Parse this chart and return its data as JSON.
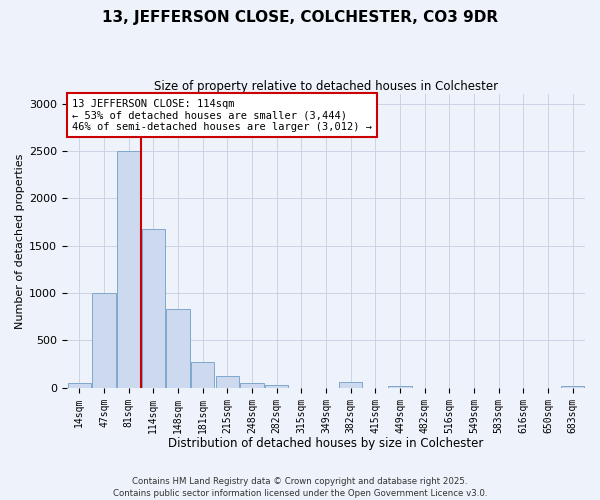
{
  "title": "13, JEFFERSON CLOSE, COLCHESTER, CO3 9DR",
  "subtitle": "Size of property relative to detached houses in Colchester",
  "xlabel": "Distribution of detached houses by size in Colchester",
  "ylabel": "Number of detached properties",
  "bar_labels": [
    "14sqm",
    "47sqm",
    "81sqm",
    "114sqm",
    "148sqm",
    "181sqm",
    "215sqm",
    "248sqm",
    "282sqm",
    "315sqm",
    "349sqm",
    "382sqm",
    "415sqm",
    "449sqm",
    "482sqm",
    "516sqm",
    "549sqm",
    "583sqm",
    "616sqm",
    "650sqm",
    "683sqm"
  ],
  "bar_values": [
    50,
    1000,
    2500,
    1680,
    830,
    270,
    120,
    50,
    30,
    0,
    0,
    60,
    0,
    20,
    0,
    0,
    0,
    0,
    0,
    0,
    20
  ],
  "bar_color": "#ccd9ee",
  "bar_edge_color": "#7fa8cc",
  "vline_color": "#cc0000",
  "ylim": [
    0,
    3100
  ],
  "yticks": [
    0,
    500,
    1000,
    1500,
    2000,
    2500,
    3000
  ],
  "annotation_text": "13 JEFFERSON CLOSE: 114sqm\n← 53% of detached houses are smaller (3,444)\n46% of semi-detached houses are larger (3,012) →",
  "annotation_box_edge": "#cc0000",
  "footnote1": "Contains HM Land Registry data © Crown copyright and database right 2025.",
  "footnote2": "Contains public sector information licensed under the Open Government Licence v3.0.",
  "background_color": "#eef2fa",
  "grid_color": "#c5cfe0"
}
